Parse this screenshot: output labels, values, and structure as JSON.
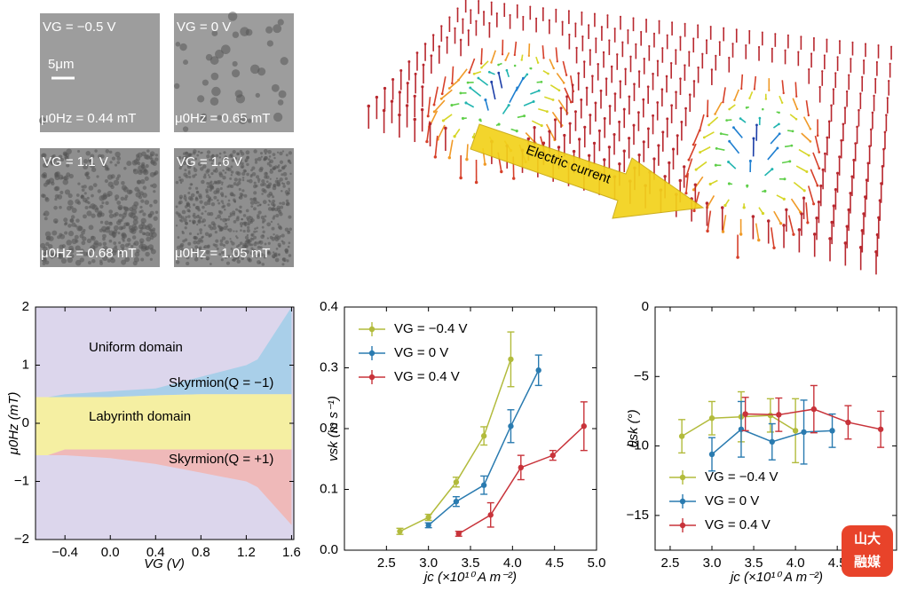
{
  "micrographs": [
    {
      "gate": "VG = −0.5 V",
      "field": "μ0Hz = 0.44 mT"
    },
    {
      "gate": "VG = 0 V",
      "field": "μ0Hz = 0.65 mT"
    },
    {
      "gate": "VG = 1.1 V",
      "field": "μ0Hz = 0.68 mT"
    },
    {
      "gate": "VG = 1.6 V",
      "field": "μ0Hz = 1.05 mT"
    }
  ],
  "scale_bar": "5μm",
  "illustration_label": "Electric current",
  "watermark": [
    "山大",
    "融媒"
  ],
  "chart_data": [
    {
      "type": "band",
      "x_label": "VG (V)",
      "y_label": "μ0Hz (mT)",
      "background": "#dcd6ec",
      "annotations": [
        "Uniform domain"
      ],
      "xlim": [
        -0.66,
        1.62
      ],
      "ylim": [
        -2,
        2
      ],
      "xticks": [
        {
          "value": -0.4,
          "label": "−0.4"
        },
        {
          "value": 0,
          "label": "0.0"
        },
        0.4,
        0.8,
        1.2,
        1.6
      ],
      "yticks": [
        {
          "value": -2,
          "label": "−2"
        },
        {
          "value": -1,
          "label": "−1"
        },
        0,
        1,
        2
      ],
      "x": [
        -0.66,
        -0.55,
        -0.4,
        0,
        0.4,
        0.8,
        1.2,
        1.3,
        1.6
      ],
      "series": [
        {
          "name": "Skyrmion(Q = −1)",
          "color": "#a9cfe9",
          "upper": [
            0.45,
            0.45,
            0.5,
            0.55,
            0.6,
            0.8,
            1.0,
            1.1,
            2.0
          ],
          "lower": [
            0.45,
            0.45,
            0.45,
            0.45,
            0.48,
            0.5,
            0.5,
            0.5,
            0.5
          ]
        },
        {
          "name": "Labyrinth domain",
          "color": "#f5efa2",
          "upper": [
            0.45,
            0.45,
            0.45,
            0.45,
            0.48,
            0.5,
            0.5,
            0.5,
            0.5
          ],
          "lower": [
            -0.55,
            -0.55,
            -0.45,
            -0.45,
            -0.45,
            -0.45,
            -0.45,
            -0.45,
            -0.45
          ]
        },
        {
          "name": "Skyrmion(Q = +1)",
          "color": "#efb9b9",
          "upper": [
            -0.55,
            -0.55,
            -0.45,
            -0.45,
            -0.45,
            -0.45,
            -0.45,
            -0.45,
            -0.45
          ],
          "lower": [
            -0.55,
            -0.55,
            -0.55,
            -0.6,
            -0.7,
            -0.85,
            -1.0,
            -1.1,
            -1.75
          ]
        }
      ]
    },
    {
      "type": "line",
      "x_label": "jc (×10¹⁰ A m⁻²)",
      "y_label": "vsk (m s⁻¹)",
      "legend": "upper left",
      "xlim": [
        2.0,
        5.0
      ],
      "ylim": [
        0,
        0.4
      ],
      "xticks": [
        2.5,
        {
          "value": 3,
          "label": "3.0"
        },
        3.5,
        {
          "value": 4,
          "label": "4.0"
        },
        4.5,
        {
          "value": 5,
          "label": "5.0"
        }
      ],
      "yticks": [
        {
          "value": 0,
          "label": "0.0"
        },
        0.1,
        0.2,
        0.3,
        0.4
      ],
      "series": [
        {
          "name": "VG = −0.4 V",
          "color": "#b2bb3c",
          "x": [
            2.66,
            3.0,
            3.33,
            3.66,
            3.98
          ],
          "values": [
            0.031,
            0.054,
            0.112,
            0.188,
            0.314
          ],
          "errors": [
            0.005,
            0.005,
            0.008,
            0.015,
            0.045
          ]
        },
        {
          "name": "VG = 0 V",
          "color": "#2a7bb0",
          "x": [
            3.0,
            3.33,
            3.66,
            3.98,
            4.31
          ],
          "values": [
            0.041,
            0.08,
            0.107,
            0.204,
            0.296
          ],
          "errors": [
            0.004,
            0.008,
            0.015,
            0.027,
            0.025
          ]
        },
        {
          "name": "VG = 0.4 V",
          "color": "#c8333a",
          "x": [
            3.36,
            3.74,
            4.1,
            4.48,
            4.85
          ],
          "values": [
            0.027,
            0.058,
            0.136,
            0.156,
            0.204
          ],
          "errors": [
            0.004,
            0.02,
            0.02,
            0.008,
            0.04
          ]
        }
      ]
    },
    {
      "type": "line",
      "x_label": "jc (×10¹⁰ A m⁻²)",
      "y_label": "θsk (°)",
      "legend": "lower left",
      "xlim": [
        2.32,
        5.21
      ],
      "ylim": [
        -17.5,
        0
      ],
      "xticks": [
        2.5,
        {
          "value": 3,
          "label": "3.0"
        },
        3.5,
        {
          "value": 4,
          "label": "4.0"
        },
        4.5,
        {
          "value": 5,
          "label": "5.0"
        }
      ],
      "yticks": [
        0,
        {
          "value": -5,
          "label": "−5"
        },
        {
          "value": -10,
          "label": "−10"
        },
        {
          "value": -15,
          "label": "−15"
        }
      ],
      "series": [
        {
          "name": "VG = −0.4 V",
          "color": "#b2bb3c",
          "x": [
            2.64,
            3.0,
            3.35,
            3.7,
            4.0
          ],
          "values": [
            -9.3,
            -8.0,
            -7.9,
            -7.8,
            -8.9
          ],
          "errors": [
            1.2,
            1.2,
            1.8,
            1.2,
            2.3
          ]
        },
        {
          "name": "VG = 0 V",
          "color": "#2a7bb0",
          "x": [
            3.0,
            3.35,
            3.72,
            4.1,
            4.44
          ],
          "values": [
            -10.6,
            -8.8,
            -9.7,
            -9.0,
            -8.9
          ],
          "errors": [
            1.2,
            2.0,
            1.3,
            2.3,
            1.2
          ]
        },
        {
          "name": "VG = 0.4 V",
          "color": "#c8333a",
          "x": [
            3.4,
            3.8,
            4.22,
            4.63,
            5.02
          ],
          "values": [
            -7.7,
            -7.75,
            -7.35,
            -8.3,
            -8.8
          ],
          "errors": [
            1.2,
            1.2,
            1.7,
            1.2,
            1.3
          ]
        }
      ]
    }
  ]
}
